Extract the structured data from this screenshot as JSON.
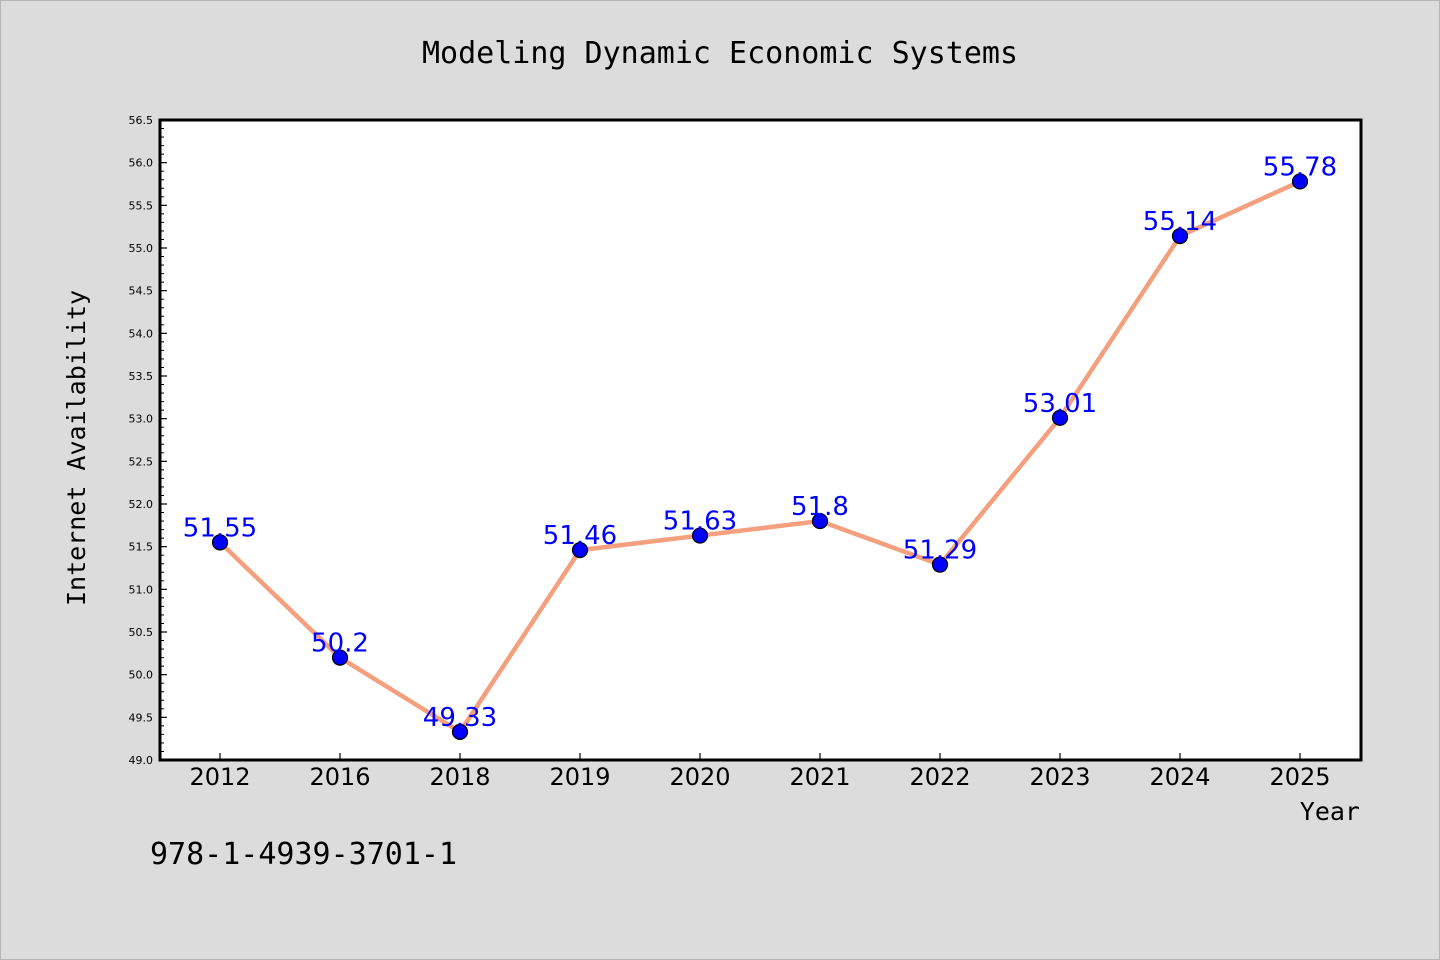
{
  "chart_data": {
    "type": "line",
    "title": "Modeling Dynamic Economic Systems",
    "xlabel": "Year",
    "ylabel": "Internet Availability",
    "categories": [
      "2012",
      "2016",
      "2018",
      "2019",
      "2020",
      "2021",
      "2022",
      "2023",
      "2024",
      "2025"
    ],
    "series": [
      {
        "values": [
          51.55,
          50.2,
          49.33,
          51.46,
          51.63,
          51.8,
          51.29,
          53.01,
          55.14,
          55.78
        ],
        "data_labels": [
          "51.55",
          "50.2",
          "49.33",
          "51.46",
          "51.63",
          "51.8",
          "51.29",
          "53.01",
          "55.14",
          "55.78"
        ],
        "line_color": "#f4a07e",
        "marker_color": "#0000ff",
        "label_color": "#0000ff"
      }
    ],
    "ylim": [
      49.0,
      56.5
    ],
    "yticks": [
      "49.0",
      "49.5",
      "50.0",
      "50.5",
      "51.0",
      "51.5",
      "52.0",
      "52.5",
      "53.0",
      "53.5",
      "54.0",
      "54.5",
      "55.0",
      "55.5",
      "56.0",
      "56.5"
    ],
    "grid": false,
    "legend": "none"
  },
  "footer": {
    "isbn": "978-1-4939-3701-1"
  },
  "colors": {
    "background": "#dcdcdc",
    "plot_area": "#ffffff",
    "axis": "#000000"
  }
}
